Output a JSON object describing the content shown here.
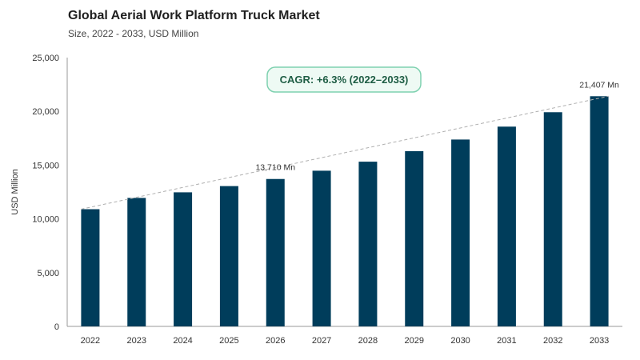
{
  "header": {
    "title": "Global Aerial Work Platform Truck Market",
    "subtitle": "Size, 2022 - 2033, USD Million"
  },
  "colors": {
    "bar": "#003d5b",
    "cagr_border": "#7fd1b0",
    "cagr_bg": "#eefaf4",
    "cagr_text": "#1f5e45",
    "trend": "#b0b0b0",
    "axis": "#999999"
  },
  "chart_data": {
    "type": "bar",
    "title": "Global Aerial Work Platform Truck Market",
    "subtitle": "Size, 2022 - 2033, USD Million",
    "xlabel": "",
    "ylabel": "USD Million",
    "categories": [
      "2022",
      "2023",
      "2024",
      "2025",
      "2026",
      "2027",
      "2028",
      "2029",
      "2030",
      "2031",
      "2032",
      "2033"
    ],
    "values": [
      10900,
      11950,
      12470,
      13050,
      13710,
      14480,
      15320,
      16300,
      17380,
      18580,
      19920,
      21407
    ],
    "ylim": [
      0,
      25000
    ],
    "yticks": [
      0,
      5000,
      10000,
      15000,
      20000,
      25000
    ],
    "ytick_labels": [
      "0",
      "5,000",
      "10,000",
      "15,000",
      "20,000",
      "25,000"
    ],
    "grid": false,
    "trendline": true,
    "annotations": [
      {
        "category": "2026",
        "text": "13,710 Mn"
      },
      {
        "category": "2033",
        "text": "21,407 Mn"
      }
    ],
    "cagr_label": "CAGR: +6.3% (2022–2033)"
  }
}
